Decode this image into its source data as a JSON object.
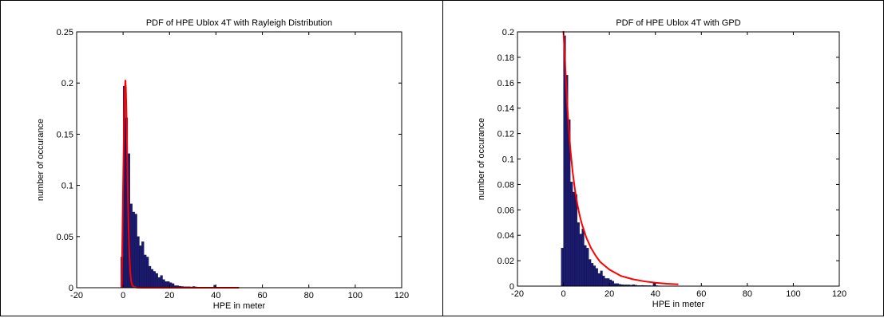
{
  "chart_data": [
    {
      "type": "bar",
      "title": "PDF of HPE Ublox 4T with Rayleigh Distribution",
      "xlabel": "HPE in meter",
      "ylabel": "number of occurance",
      "xlim": [
        -20,
        120
      ],
      "ylim": [
        0,
        0.25
      ],
      "xticks": [
        "-20",
        "0",
        "20",
        "40",
        "60",
        "80",
        "100",
        "120"
      ],
      "yticks": [
        "0",
        "0.05",
        "0.1",
        "0.15",
        "0.2",
        "0.25"
      ],
      "bar_color": "#1a1a6e",
      "fit_color": "#ff0000",
      "bars": {
        "bin_width": 1,
        "x": [
          -1,
          0,
          1,
          2,
          3,
          4,
          5,
          6,
          7,
          8,
          9,
          10,
          11,
          12,
          13,
          14,
          15,
          16,
          17,
          18,
          19,
          20,
          21,
          22,
          23,
          24,
          25,
          26,
          27,
          28,
          29,
          30,
          31,
          32,
          33,
          34,
          35,
          36,
          37,
          38,
          39,
          40,
          41,
          42,
          43,
          44,
          45,
          46,
          47,
          48
        ],
        "values": [
          0.03,
          0.197,
          0.166,
          0.131,
          0.082,
          0.074,
          0.072,
          0.05,
          0.041,
          0.045,
          0.032,
          0.03,
          0.021,
          0.018,
          0.016,
          0.014,
          0.01,
          0.012,
          0.008,
          0.006,
          0.006,
          0.005,
          0.004,
          0.002,
          0.002,
          0.0015,
          0.0012,
          0.001,
          0.001,
          0.001,
          0.0008,
          0.0012,
          0.0008,
          0.0005,
          0.0005,
          0.0006,
          0.0005,
          0.0004,
          0.0004,
          0.0003,
          0.0025,
          0.0004,
          0.0003,
          0.0002,
          0.0002,
          0.0002,
          0.0002,
          0.0001,
          0.0001,
          0.0001
        ]
      },
      "fit_series": {
        "name": "",
        "x": [
          -0.6,
          -0.3,
          0.0,
          0.2,
          0.4,
          0.6,
          0.8,
          1.0,
          1.2,
          1.5,
          1.8,
          2.1,
          2.4,
          2.7,
          3.0,
          3.5,
          4.0,
          5.0,
          6.0,
          8.0,
          10,
          20,
          30,
          40,
          50
        ],
        "values": [
          0.0,
          0.05,
          0.1,
          0.13,
          0.16,
          0.18,
          0.196,
          0.203,
          0.195,
          0.165,
          0.125,
          0.085,
          0.055,
          0.032,
          0.017,
          0.006,
          0.002,
          0.0005,
          0.0001,
          0,
          0,
          0,
          0,
          0,
          0
        ]
      }
    },
    {
      "type": "bar",
      "title": "PDF of HPE Ublox 4T with GPD",
      "xlabel": "HPE in meter",
      "ylabel": "number of occurance",
      "xlim": [
        -20,
        120
      ],
      "ylim": [
        0,
        0.2
      ],
      "xticks": [
        "-20",
        "0",
        "20",
        "40",
        "60",
        "80",
        "100",
        "120"
      ],
      "yticks": [
        "0",
        "0.02",
        "0.04",
        "0.06",
        "0.08",
        "0.1",
        "0.12",
        "0.14",
        "0.16",
        "0.18",
        "0.2"
      ],
      "bar_color": "#1a1a6e",
      "fit_color": "#ff0000",
      "bars": {
        "bin_width": 1,
        "x": [
          -1,
          0,
          1,
          2,
          3,
          4,
          5,
          6,
          7,
          8,
          9,
          10,
          11,
          12,
          13,
          14,
          15,
          16,
          17,
          18,
          19,
          20,
          21,
          22,
          23,
          24,
          25,
          26,
          27,
          28,
          29,
          30,
          31,
          32,
          33,
          34,
          35,
          36,
          37,
          38,
          39,
          40,
          41,
          42,
          43,
          44,
          45,
          46,
          47,
          48
        ],
        "values": [
          0.03,
          0.197,
          0.166,
          0.131,
          0.082,
          0.074,
          0.072,
          0.05,
          0.041,
          0.045,
          0.032,
          0.03,
          0.021,
          0.018,
          0.016,
          0.014,
          0.01,
          0.012,
          0.008,
          0.006,
          0.006,
          0.005,
          0.004,
          0.002,
          0.002,
          0.0015,
          0.0012,
          0.001,
          0.001,
          0.001,
          0.0008,
          0.0012,
          0.0008,
          0.0005,
          0.0005,
          0.0006,
          0.0005,
          0.0004,
          0.0004,
          0.0003,
          0.0025,
          0.0004,
          0.0003,
          0.0002,
          0.0002,
          0.0002,
          0.0002,
          0.0001,
          0.0001,
          0.0001
        ]
      },
      "fit_series": {
        "name": "",
        "x": [
          -0.3,
          0.0,
          0.5,
          1.0,
          1.5,
          2,
          3,
          4,
          5,
          6,
          7,
          8,
          10,
          12,
          14,
          16,
          18,
          20,
          25,
          30,
          35,
          40,
          45,
          50
        ],
        "values": [
          0.2,
          0.2,
          0.185,
          0.165,
          0.148,
          0.133,
          0.108,
          0.09,
          0.076,
          0.065,
          0.056,
          0.049,
          0.038,
          0.03,
          0.024,
          0.019,
          0.016,
          0.013,
          0.008,
          0.0055,
          0.0038,
          0.0027,
          0.0019,
          0.0014
        ]
      }
    }
  ]
}
